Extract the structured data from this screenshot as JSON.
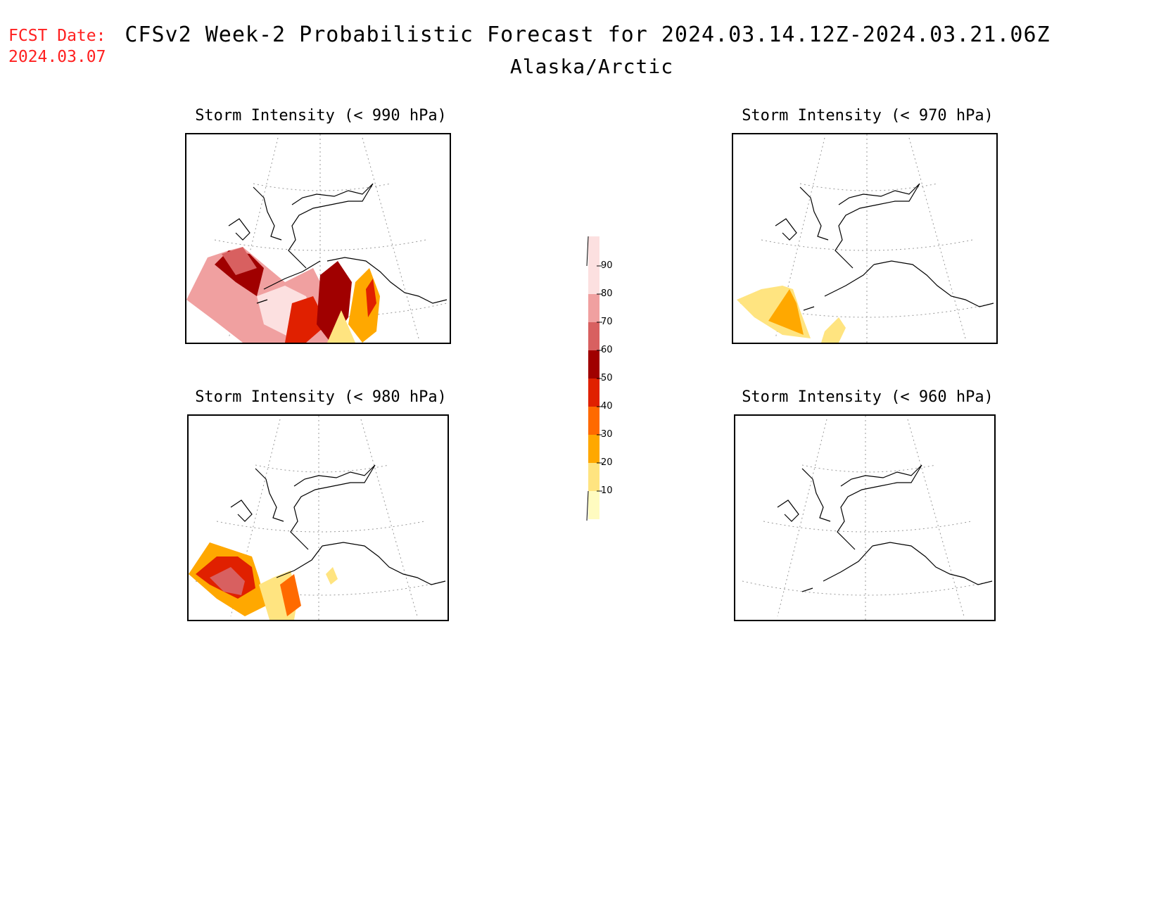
{
  "header": {
    "fcst_label": "FCST Date:",
    "fcst_date": "2024.03.07",
    "title": "CFSv2 Week-2 Probabilistic Forecast for 2024.03.14.12Z-2024.03.21.06Z",
    "subtitle": "Alaska/Arctic"
  },
  "panels": [
    {
      "id": "p990",
      "title": "Storm Intensity (< 990 hPa)"
    },
    {
      "id": "p970",
      "title": "Storm Intensity (< 970 hPa)"
    },
    {
      "id": "p980",
      "title": "Storm Intensity (< 980 hPa)"
    },
    {
      "id": "p960",
      "title": "Storm Intensity (< 960 hPa)"
    }
  ],
  "legend": {
    "levels": [
      "10",
      "20",
      "30",
      "40",
      "50",
      "60",
      "70",
      "80",
      "90"
    ],
    "colors": [
      "#fffbc0",
      "#ffe480",
      "#ffa800",
      "#ff6a00",
      "#e02000",
      "#a00000",
      "#d86060",
      "#f0a0a0",
      "#fce0e0"
    ]
  }
}
